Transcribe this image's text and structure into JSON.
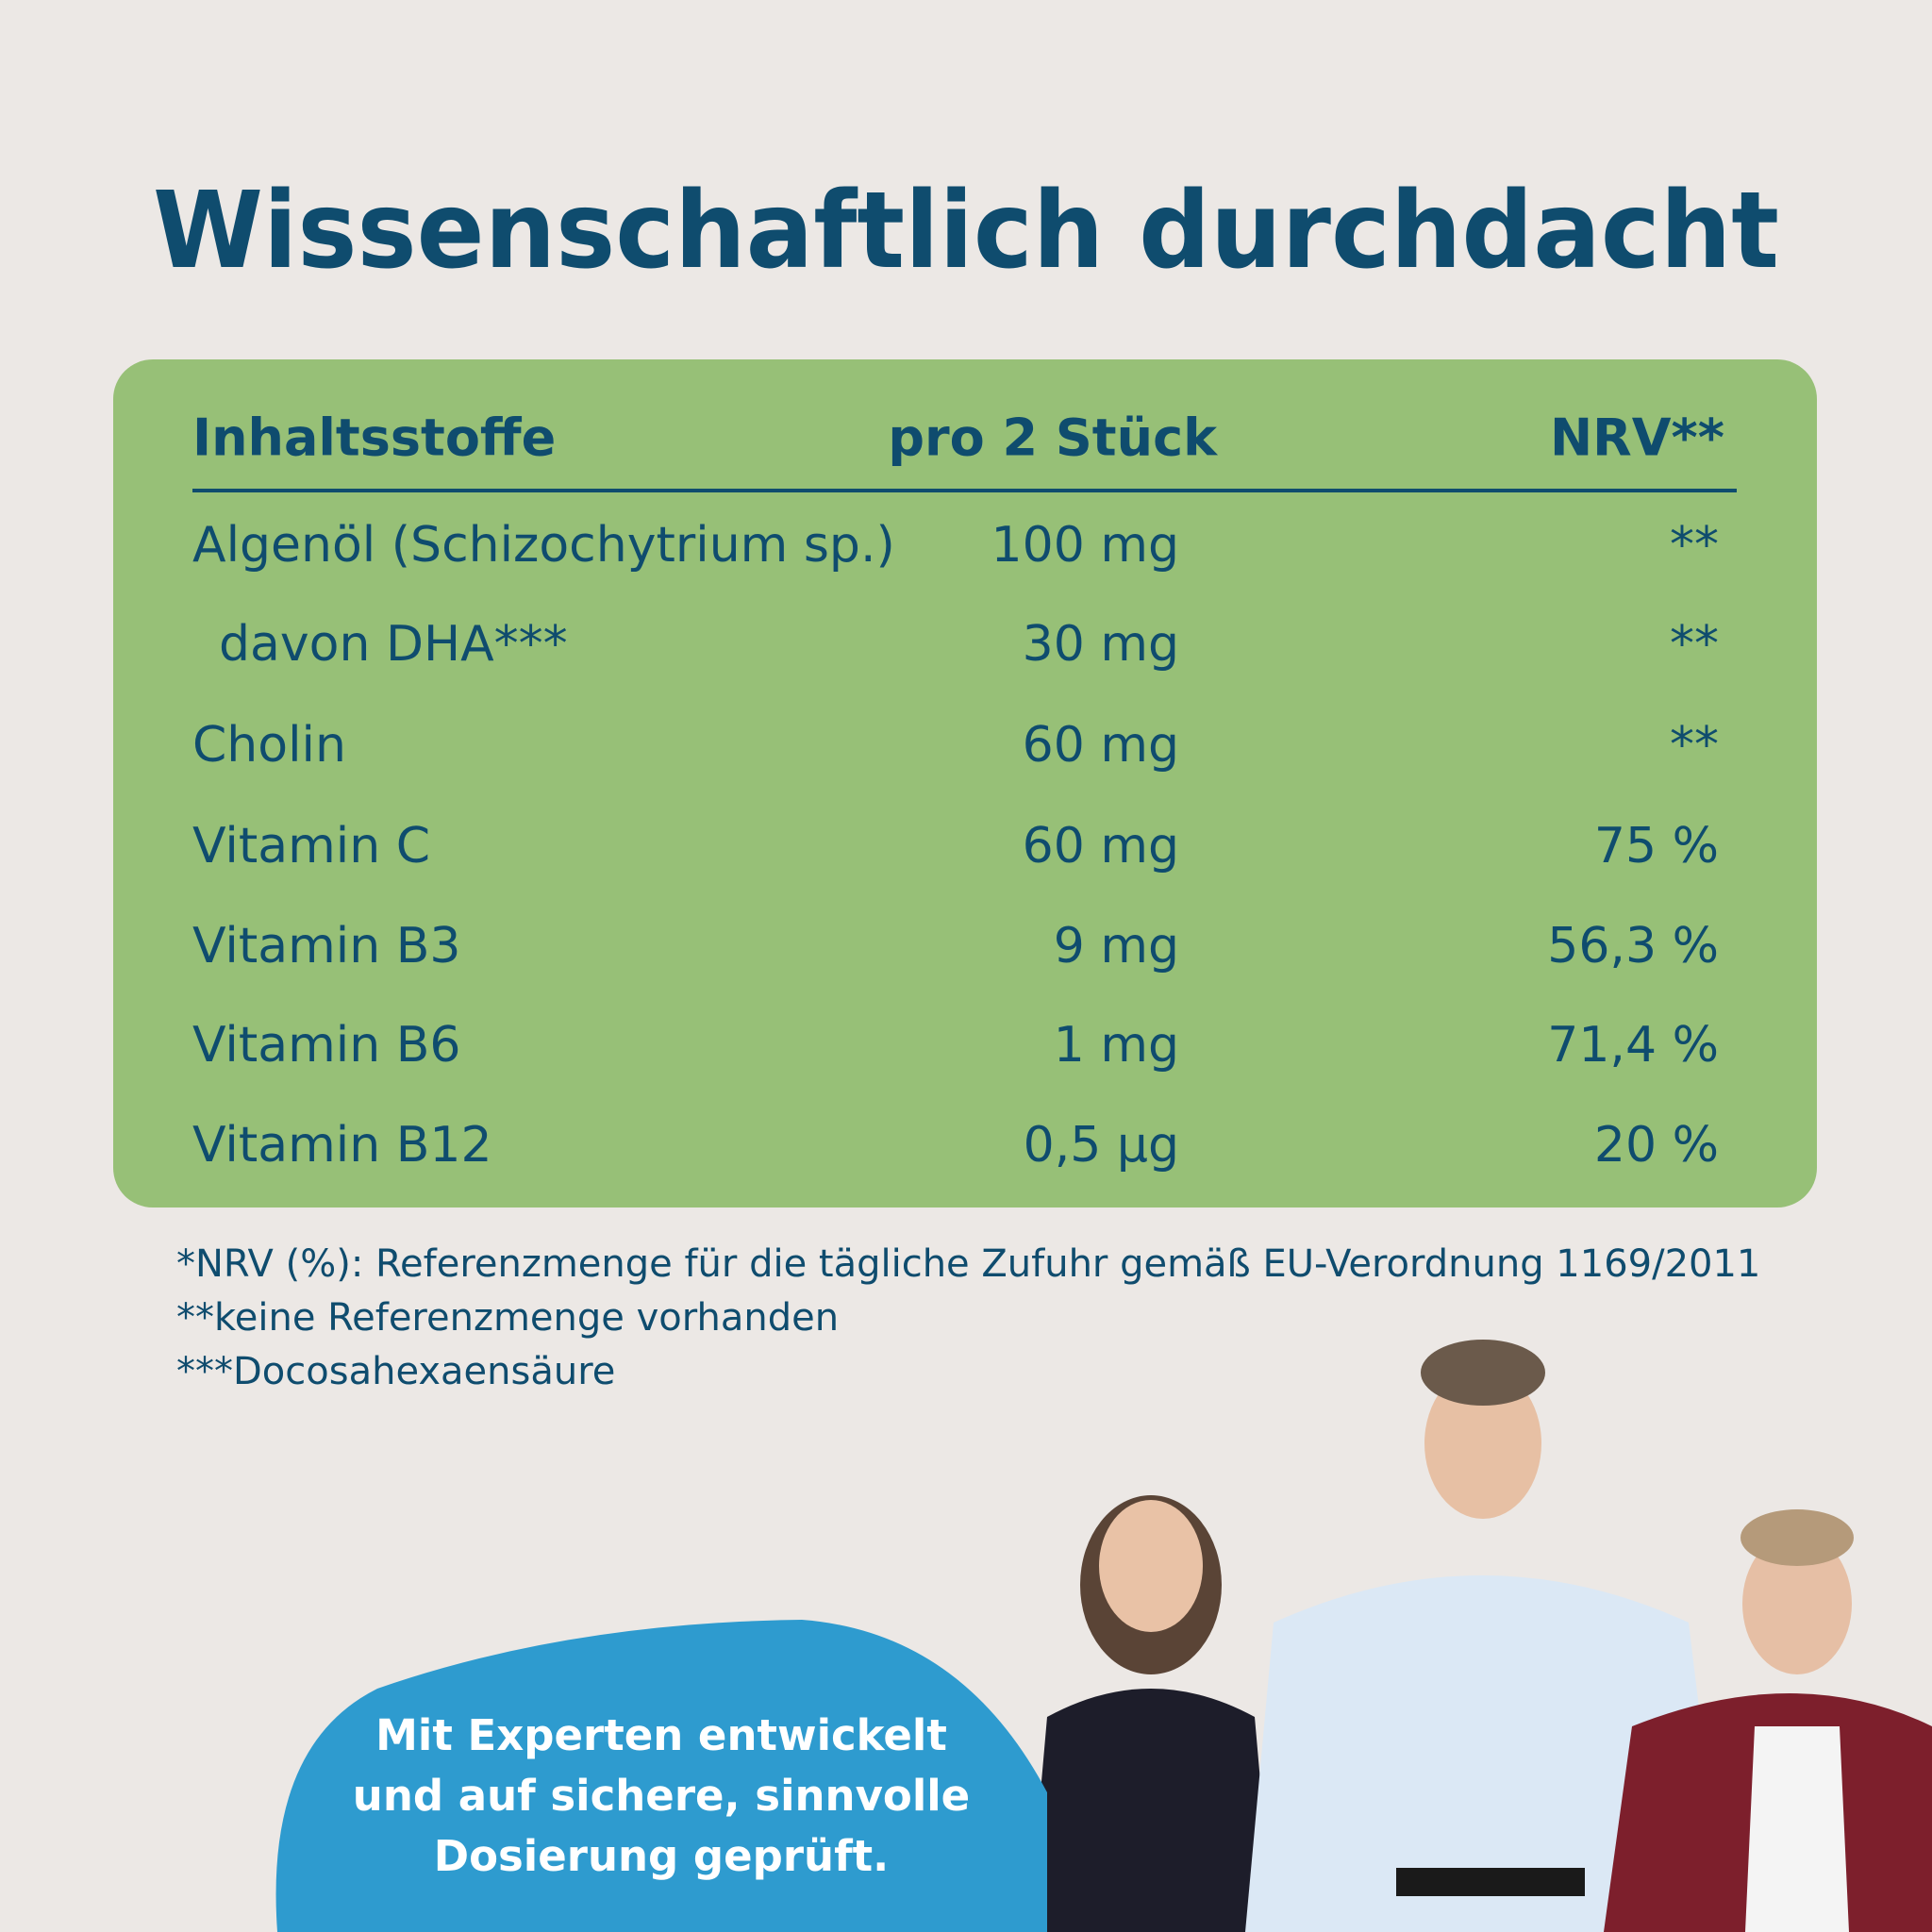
{
  "title": "Wissenschaftlich durchdacht",
  "table": {
    "header": [
      "Inhaltsstoffe",
      "pro 2 Stück",
      "NRV**"
    ],
    "rows": [
      [
        "Algenöl (Schizochytrium sp.)",
        "100 mg",
        "**"
      ],
      [
        "davon DHA***",
        "30 mg",
        "**"
      ],
      [
        "Cholin",
        "60 mg",
        "**"
      ],
      [
        "Vitamin C",
        "60 mg",
        "75 %"
      ],
      [
        "Vitamin B3",
        "9 mg",
        "56,3 %"
      ],
      [
        "Vitamin B6",
        "1 mg",
        "71,4 %"
      ],
      [
        "Vitamin B12",
        "0,5 µg",
        "20 %"
      ]
    ]
  },
  "footnotes": [
    "*NRV (%): Referenzmenge für die tägliche Zufuhr gemäß EU-Verordnung 1169/2011",
    "**keine Referenzmenge vorhanden",
    "***Docosahexaensäure"
  ],
  "callout": {
    "lines": [
      "Mit Experten entwickelt",
      "und auf sichere, sinnvolle",
      "Dosierung geprüft."
    ]
  }
}
